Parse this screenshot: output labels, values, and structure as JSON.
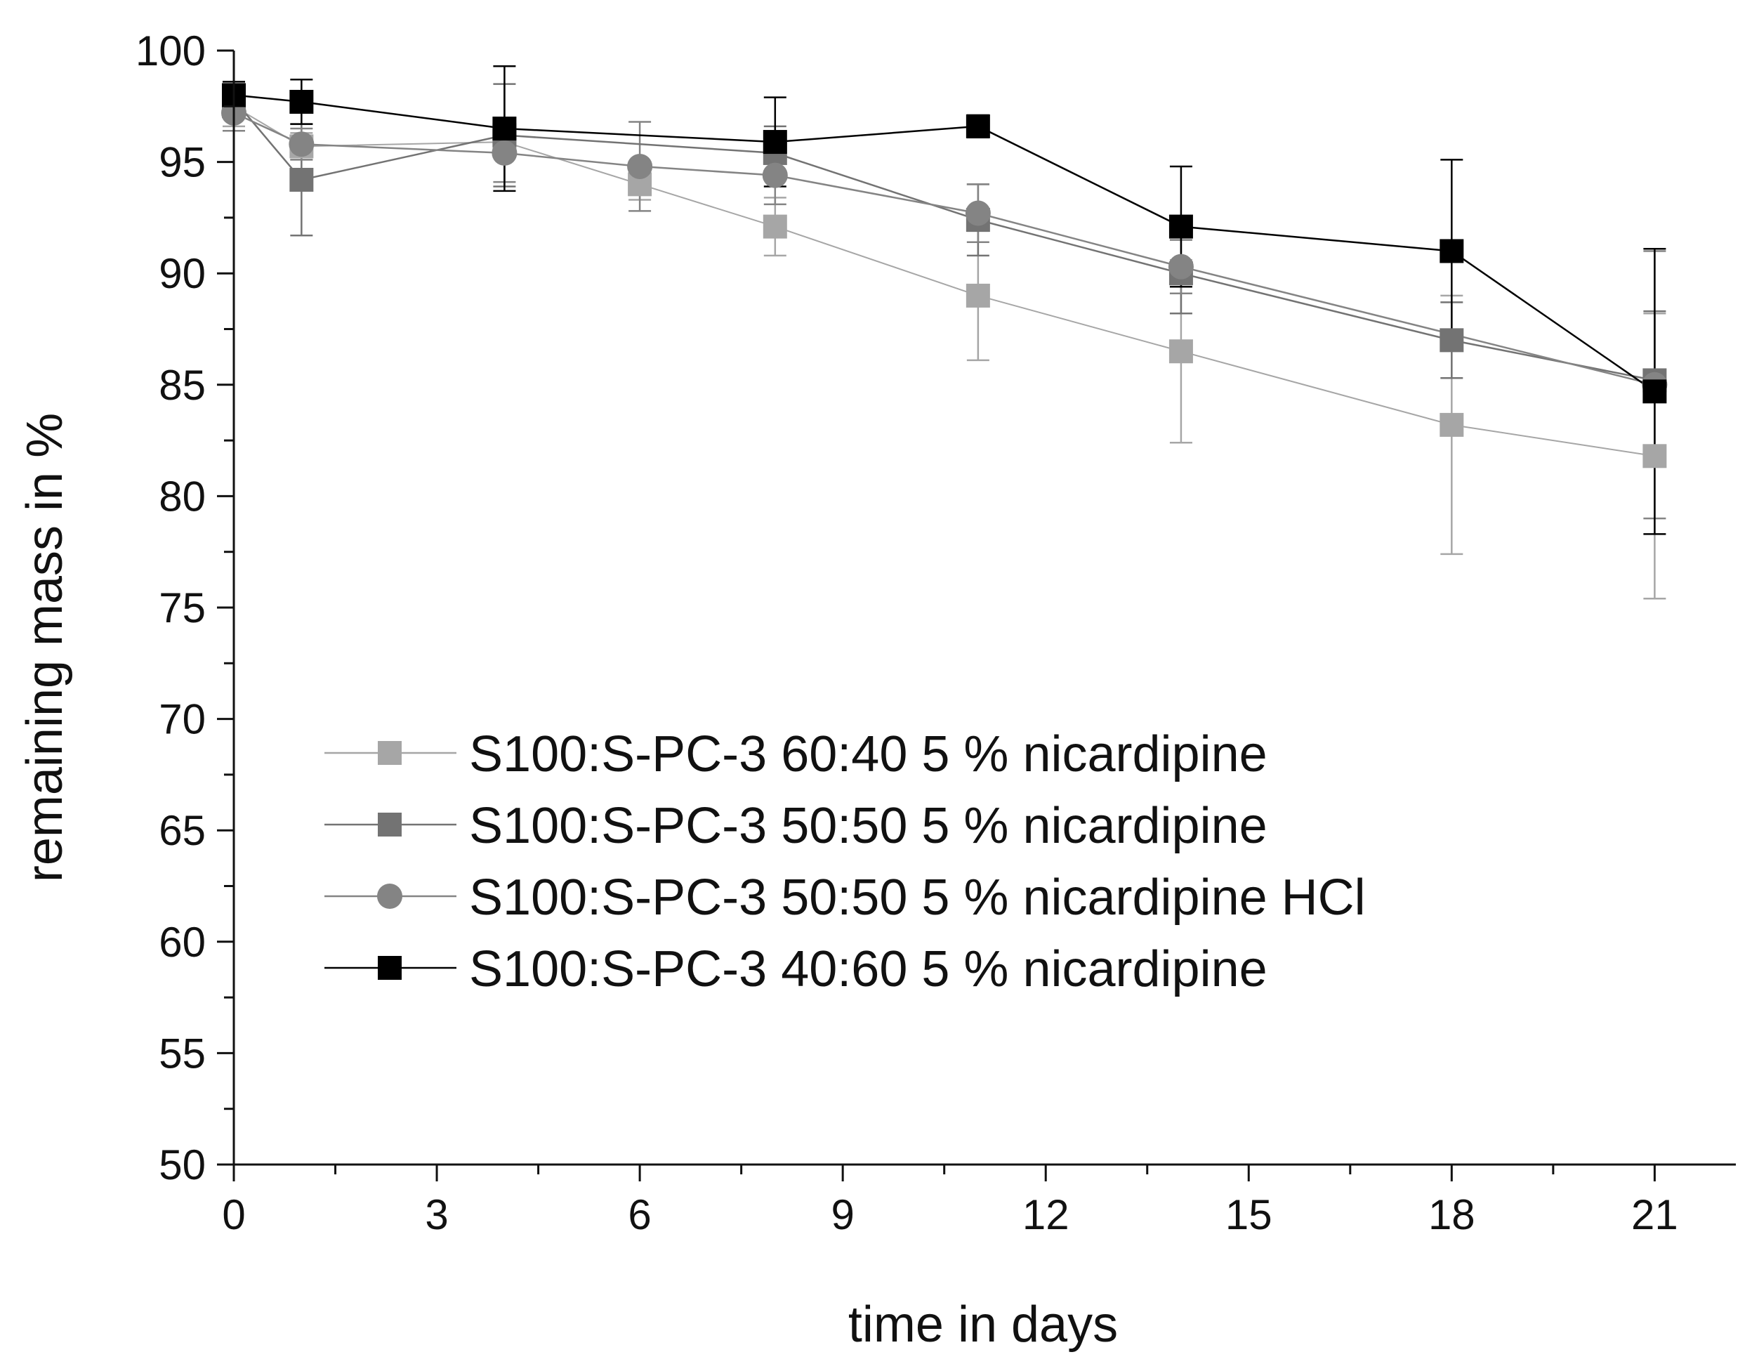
{
  "chart_data": {
    "type": "line",
    "title": "",
    "xlabel": "time in days",
    "ylabel": "remaining mass in %",
    "xlim": [
      0,
      22.2
    ],
    "ylim": [
      50,
      100
    ],
    "x_ticks": [
      0,
      3,
      6,
      9,
      12,
      15,
      18,
      21
    ],
    "x_tick_labels": [
      "0",
      "3",
      "6",
      "9",
      "12",
      "15",
      "18",
      "21"
    ],
    "y_ticks": [
      50,
      55,
      60,
      65,
      70,
      75,
      80,
      85,
      90,
      95,
      100
    ],
    "y_tick_labels": [
      "50",
      "55",
      "60",
      "65",
      "70",
      "75",
      "80",
      "85",
      "90",
      "95",
      "100"
    ],
    "grid": false,
    "legend_position": "center-left",
    "series": [
      {
        "name": "S100:S-PC-3 60:40 5 % nicardipine",
        "marker": "square",
        "color": "#a6a6a6",
        "x": [
          0,
          1,
          4,
          6,
          8,
          11,
          14,
          18,
          21
        ],
        "y": [
          97.5,
          95.7,
          95.9,
          94.0,
          92.1,
          89.0,
          86.5,
          83.2,
          81.8
        ],
        "err": [
          0.9,
          0.6,
          0.5,
          0.7,
          1.3,
          2.9,
          4.1,
          5.8,
          6.4
        ]
      },
      {
        "name": "S100:S-PC-3 50:50 5 % nicardipine",
        "marker": "square",
        "color": "#737373",
        "x": [
          0,
          1,
          4,
          8,
          11,
          14,
          18,
          21
        ],
        "y": [
          97.8,
          94.2,
          96.2,
          95.4,
          92.4,
          90.0,
          87.0,
          85.2
        ],
        "err": [
          0.7,
          2.5,
          2.3,
          1.2,
          1.6,
          1.8,
          1.7,
          3.1
        ]
      },
      {
        "name": "S100:S-PC-3 50:50 5 % nicardipine HCl",
        "marker": "circle",
        "color": "#848484",
        "x": [
          0,
          1,
          4,
          6,
          8,
          11,
          14,
          21
        ],
        "y": [
          97.2,
          95.8,
          95.4,
          94.8,
          94.4,
          92.7,
          90.3,
          85.0
        ],
        "err": [
          0.8,
          0.7,
          1.3,
          2.0,
          1.3,
          1.3,
          1.2,
          6.0
        ]
      },
      {
        "name": "S100:S-PC-3 40:60 5 % nicardipine",
        "marker": "square",
        "color": "#000000",
        "x": [
          0,
          1,
          4,
          8,
          11,
          14,
          18,
          21
        ],
        "y": [
          98.0,
          97.7,
          96.5,
          95.9,
          96.6,
          92.1,
          91.0,
          84.7
        ],
        "err": [
          0.6,
          1.0,
          2.8,
          2.0,
          0.5,
          2.7,
          4.1,
          6.4
        ]
      }
    ]
  }
}
